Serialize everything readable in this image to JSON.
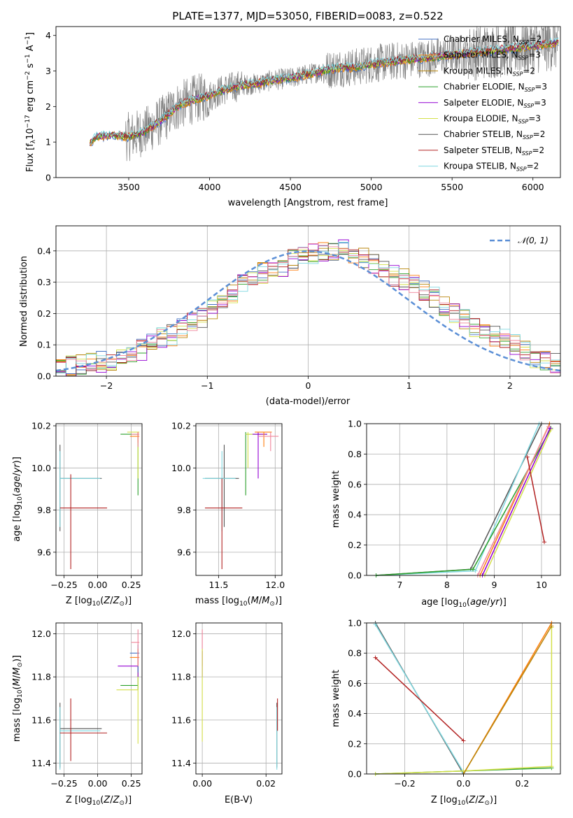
{
  "colors": {
    "chabrier_miles": "#4472c4",
    "salpeter_miles": "#ff7f0e",
    "kroupa_miles": "#b8860b",
    "chabrier_elodie": "#2ca02c",
    "salpeter_elodie": "#9400d3",
    "kroupa_elodie": "#d4e04a",
    "chabrier_stelib": "#555555",
    "salpeter_stelib": "#b22222",
    "kroupa_stelib": "#7fd8e0",
    "pink": "#f0849a",
    "data": "#808080",
    "normal": "#5b8fd6"
  },
  "chart_data": [
    {
      "type": "line",
      "title": "PLATE=1377, MJD=53050, FIBERID=0083, z=0.522",
      "xlabel": "wavelength [Angstrom, rest frame]",
      "ylabel": "Flux [f_λ 10^-17 erg cm^-2 s^-1 A^-1]",
      "xlim": [
        3050,
        6170
      ],
      "ylim": [
        0,
        4.25
      ],
      "xticks": [
        "3500",
        "4000",
        "4500",
        "5000",
        "5500",
        "6000"
      ],
      "yticks": [
        "0",
        "1",
        "2",
        "3",
        "4"
      ],
      "legend_position": "upper right",
      "series": [
        {
          "name": "Chabrier MILES, N_SSP=2",
          "color": "#4472c4"
        },
        {
          "name": "Salpeter MILES, N_SSP=3",
          "color": "#ff7f0e"
        },
        {
          "name": "Kroupa MILES, N_SSP=2",
          "color": "#b8860b"
        },
        {
          "name": "Chabrier ELODIE, N_SSP=3",
          "color": "#2ca02c"
        },
        {
          "name": "Salpeter ELODIE, N_SSP=3",
          "color": "#9400d3"
        },
        {
          "name": "Kroupa ELODIE, N_SSP=3",
          "color": "#d4e04a"
        },
        {
          "name": "Chabrier STELIB, N_SSP=2",
          "color": "#555555"
        },
        {
          "name": "Salpeter STELIB, N_SSP=2",
          "color": "#b22222"
        },
        {
          "name": "Kroupa STELIB, N_SSP=2",
          "color": "#7fd8e0"
        }
      ],
      "model_continuum": {
        "x": [
          3250,
          3300,
          3400,
          3500,
          3600,
          3700,
          3800,
          3900,
          4000,
          4100,
          4200,
          4300,
          4400,
          4500,
          4600,
          4700,
          4800,
          4900,
          5000,
          5200,
          5400,
          5600,
          5800,
          6000,
          6150
        ],
        "y": [
          0.9,
          1.15,
          1.2,
          1.15,
          1.3,
          1.6,
          2.0,
          2.2,
          2.3,
          2.5,
          2.6,
          2.65,
          2.75,
          2.8,
          2.9,
          3.0,
          3.1,
          3.1,
          3.2,
          3.3,
          3.4,
          3.5,
          3.6,
          3.7,
          3.8
        ]
      }
    },
    {
      "type": "histogram",
      "xlabel": "(data-model)/error",
      "ylabel": "Normed distribution",
      "xlim": [
        -2.5,
        2.5
      ],
      "ylim": [
        0,
        0.48
      ],
      "xticks": [
        "−2",
        "−1",
        "0",
        "1",
        "2"
      ],
      "yticks": [
        "0.0",
        "0.1",
        "0.2",
        "0.3",
        "0.4"
      ],
      "legend": "𝒩(0, 1)",
      "bin_edges_start": -2.5,
      "bin_width": 0.1,
      "heights": [
        0.02,
        0.03,
        0.035,
        0.04,
        0.045,
        0.05,
        0.06,
        0.07,
        0.085,
        0.1,
        0.12,
        0.13,
        0.15,
        0.17,
        0.19,
        0.21,
        0.24,
        0.26,
        0.3,
        0.31,
        0.33,
        0.34,
        0.35,
        0.37,
        0.38,
        0.39,
        0.4,
        0.39,
        0.41,
        0.39,
        0.38,
        0.36,
        0.34,
        0.32,
        0.31,
        0.29,
        0.27,
        0.25,
        0.22,
        0.2,
        0.18,
        0.16,
        0.15,
        0.13,
        0.12,
        0.1,
        0.08,
        0.06,
        0.05,
        0.04
      ]
    },
    {
      "type": "scatter",
      "xlabel": "Z [log10(Z/Z⊙)]",
      "ylabel": "age [log10(age/yr)]",
      "xlim": [
        -0.31,
        0.33
      ],
      "ylim": [
        9.49,
        10.21
      ],
      "xticks": [
        "−0.25",
        "0.00",
        "0.25"
      ],
      "yticks": [
        "9.6",
        "9.8",
        "10.0",
        "10.2"
      ]
    },
    {
      "type": "scatter",
      "xlabel": "mass [log10(M/M⊙)]",
      "xlim": [
        11.3,
        12.06
      ],
      "ylim": [
        9.49,
        10.21
      ],
      "xticks": [
        "11.5",
        "12.0"
      ],
      "yticks": [
        "9.6",
        "9.8",
        "10.0",
        "10.2"
      ]
    },
    {
      "type": "line",
      "xlabel": "age [log10(age/yr)]",
      "ylabel": "mass weight",
      "xlim": [
        6.3,
        10.4
      ],
      "ylim": [
        0,
        1
      ],
      "xticks": [
        "7",
        "8",
        "9",
        "10"
      ],
      "yticks": [
        "0.0",
        "0.2",
        "0.4",
        "0.6",
        "0.8",
        "1.0"
      ]
    },
    {
      "type": "scatter",
      "xlabel": "Z [log10(Z/Z⊙)]",
      "ylabel": "mass [log10(M/M⊙)]",
      "xlim": [
        -0.31,
        0.33
      ],
      "ylim": [
        11.35,
        12.05
      ],
      "xticks": [
        "−0.25",
        "0.00",
        "0.25"
      ],
      "yticks": [
        "11.4",
        "11.6",
        "11.8",
        "12.0"
      ]
    },
    {
      "type": "scatter",
      "xlabel": "E(B-V)",
      "xlim": [
        -0.002,
        0.025
      ],
      "ylim": [
        11.35,
        12.05
      ],
      "xticks": [
        "0.00",
        "0.02"
      ],
      "yticks": [
        "11.4",
        "11.6",
        "11.8",
        "12.0"
      ]
    },
    {
      "type": "line",
      "xlabel": "Z [log10(Z/Z⊙)]",
      "ylabel": "mass weight",
      "xlim": [
        -0.33,
        0.33
      ],
      "ylim": [
        0,
        1
      ],
      "xticks": [
        "−0.2",
        "0.0",
        "0.2"
      ],
      "yticks": [
        "0.0",
        "0.2",
        "0.4",
        "0.6",
        "0.8",
        "1.0"
      ]
    }
  ]
}
